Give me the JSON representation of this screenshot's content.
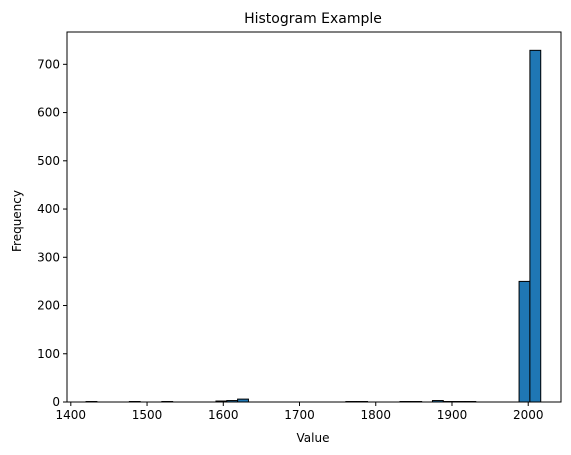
{
  "chart_data": {
    "type": "bar",
    "title": "Histogram Example",
    "xlabel": "Value",
    "ylabel": "Frequency",
    "xlim": [
      1395,
      2043
    ],
    "ylim": [
      0,
      767
    ],
    "x_ticks": [
      1400,
      1500,
      1600,
      1700,
      1800,
      1900,
      2000
    ],
    "y_ticks": [
      0,
      100,
      200,
      300,
      400,
      500,
      600,
      700
    ],
    "bin_edges": [
      1420,
      1434.2,
      1448.4,
      1462.6,
      1476.8,
      1491,
      1505.2,
      1519.4,
      1533.6,
      1547.8,
      1562,
      1576.2,
      1590.4,
      1604.6,
      1618.8,
      1633,
      1647.2,
      1661.4,
      1675.6,
      1689.8,
      1704,
      1718.2,
      1732.4,
      1746.6,
      1760.8,
      1775,
      1789.2,
      1803.4,
      1817.6,
      1831.8,
      1846,
      1860.2,
      1874.4,
      1888.6,
      1902.8,
      1917,
      1931.2,
      1945.4,
      1959.6,
      1973.8,
      1988,
      2002.2,
      2016.4
    ],
    "counts": [
      1,
      0,
      0,
      0,
      1,
      0,
      0,
      1,
      0,
      0,
      0,
      0,
      2,
      3,
      6,
      0,
      0,
      0,
      0,
      0,
      0,
      0,
      0,
      0,
      1,
      1,
      0,
      0,
      0,
      1,
      1,
      0,
      3,
      1,
      1,
      1,
      0,
      0,
      0,
      0,
      250,
      729
    ],
    "bar_color": "#1f77b4",
    "edge_color": "#000000",
    "grid": false
  }
}
